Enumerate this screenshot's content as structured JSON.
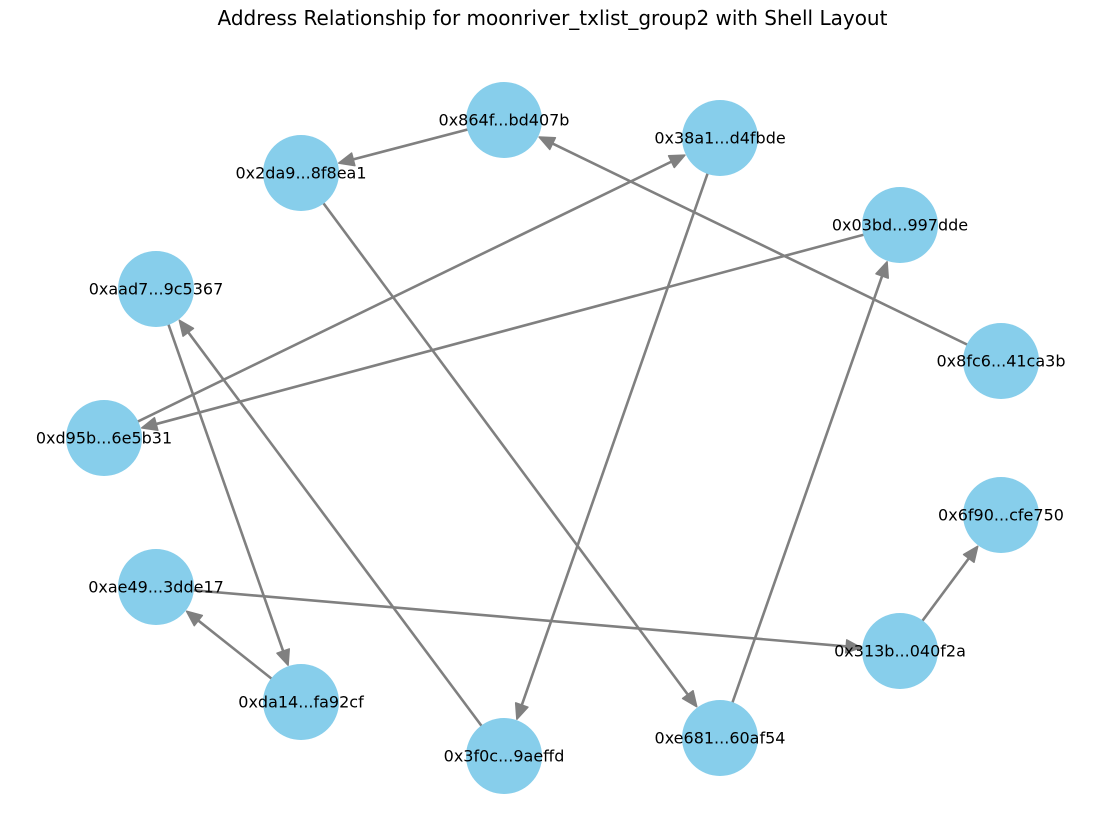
{
  "title": "Address Relationship for moonriver_txlist_group2 with Shell Layout",
  "colors": {
    "node": "#87ceeb",
    "edge": "#808080",
    "label": "#000000"
  },
  "nodes": [
    {
      "id": "n864f",
      "label": "0x864f...bd407b"
    },
    {
      "id": "n38a1",
      "label": "0x38a1...d4fbde"
    },
    {
      "id": "n2da9",
      "label": "0x2da9...8f8ea1"
    },
    {
      "id": "n03bd",
      "label": "0x03bd...997dde"
    },
    {
      "id": "naad7",
      "label": "0xaad7...9c5367"
    },
    {
      "id": "n8fc6",
      "label": "0x8fc6...41ca3b"
    },
    {
      "id": "nd95b",
      "label": "0xd95b...6e5b31"
    },
    {
      "id": "n6f90",
      "label": "0x6f90...cfe750"
    },
    {
      "id": "nae49",
      "label": "0xae49...3dde17"
    },
    {
      "id": "n313b",
      "label": "0x313b...040f2a"
    },
    {
      "id": "nda14",
      "label": "0xda14...fa92cf"
    },
    {
      "id": "ne681",
      "label": "0xe681...60af54"
    },
    {
      "id": "n3f0c",
      "label": "0x3f0c...9aeffd"
    }
  ],
  "edges": [
    {
      "source": "n864f",
      "target": "n2da9"
    },
    {
      "source": "nd95b",
      "target": "n38a1"
    },
    {
      "source": "n03bd",
      "target": "nd95b"
    },
    {
      "source": "n8fc6",
      "target": "n864f"
    },
    {
      "source": "n2da9",
      "target": "ne681"
    },
    {
      "source": "n38a1",
      "target": "n3f0c"
    },
    {
      "source": "naad7",
      "target": "nda14"
    },
    {
      "source": "n3f0c",
      "target": "naad7"
    },
    {
      "source": "nda14",
      "target": "nae49"
    },
    {
      "source": "nae49",
      "target": "n313b"
    },
    {
      "source": "ne681",
      "target": "n03bd"
    },
    {
      "source": "n313b",
      "target": "n6f90"
    }
  ]
}
